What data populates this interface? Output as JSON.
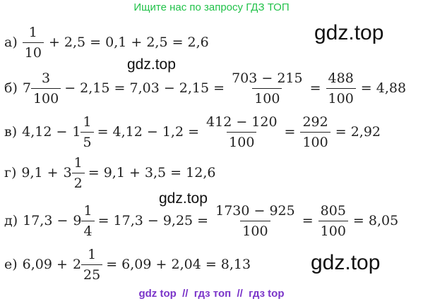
{
  "header": "Ищите нас по запросу ГДЗ ТОП",
  "footer": "gdz top  //  гдз топ  //  гдз top",
  "watermarks": [
    "gdz.top",
    "gdz.top",
    "gdz.top",
    "gdz.top"
  ],
  "lines": [
    {
      "label": "а)",
      "parts": [
        {
          "num": "1",
          "den": "10"
        },
        {
          "text": "+ 2,5 = 0,1 + 2,5 = 2,6"
        }
      ]
    },
    {
      "label": "б)",
      "parts": [
        {
          "whole": "7",
          "num": "3",
          "den": "100"
        },
        {
          "text": "− 2,15 = 7,03 − 2,15 ="
        },
        {
          "num": "703 − 215",
          "den": "100"
        },
        {
          "text": "="
        },
        {
          "num": "488",
          "den": "100"
        },
        {
          "text": "= 4,88"
        }
      ]
    },
    {
      "label": "в)",
      "parts": [
        {
          "text": "4,12 −"
        },
        {
          "whole": "1",
          "num": "1",
          "den": "5"
        },
        {
          "text": "= 4,12 − 1,2 ="
        },
        {
          "num": "412 − 120",
          "den": "100"
        },
        {
          "text": "="
        },
        {
          "num": "292",
          "den": "100"
        },
        {
          "text": "= 2,92"
        }
      ]
    },
    {
      "label": "г)",
      "parts": [
        {
          "text": "9,1 +"
        },
        {
          "whole": "3",
          "num": "1",
          "den": "2"
        },
        {
          "text": "= 9,1 + 3,5 = 12,6"
        }
      ]
    },
    {
      "label": "д)",
      "parts": [
        {
          "text": "17,3 −"
        },
        {
          "whole": "9",
          "num": "1",
          "den": "4"
        },
        {
          "text": "= 17,3 − 9,25 ="
        },
        {
          "num": "1730 − 925",
          "den": "100"
        },
        {
          "text": "="
        },
        {
          "num": "805",
          "den": "100"
        },
        {
          "text": "= 8,05"
        }
      ]
    },
    {
      "label": "е)",
      "parts": [
        {
          "text": "6,09 +"
        },
        {
          "whole": "2",
          "num": "1",
          "den": "25"
        },
        {
          "text": "= 6,09 + 2,04 = 8,13"
        }
      ]
    }
  ]
}
